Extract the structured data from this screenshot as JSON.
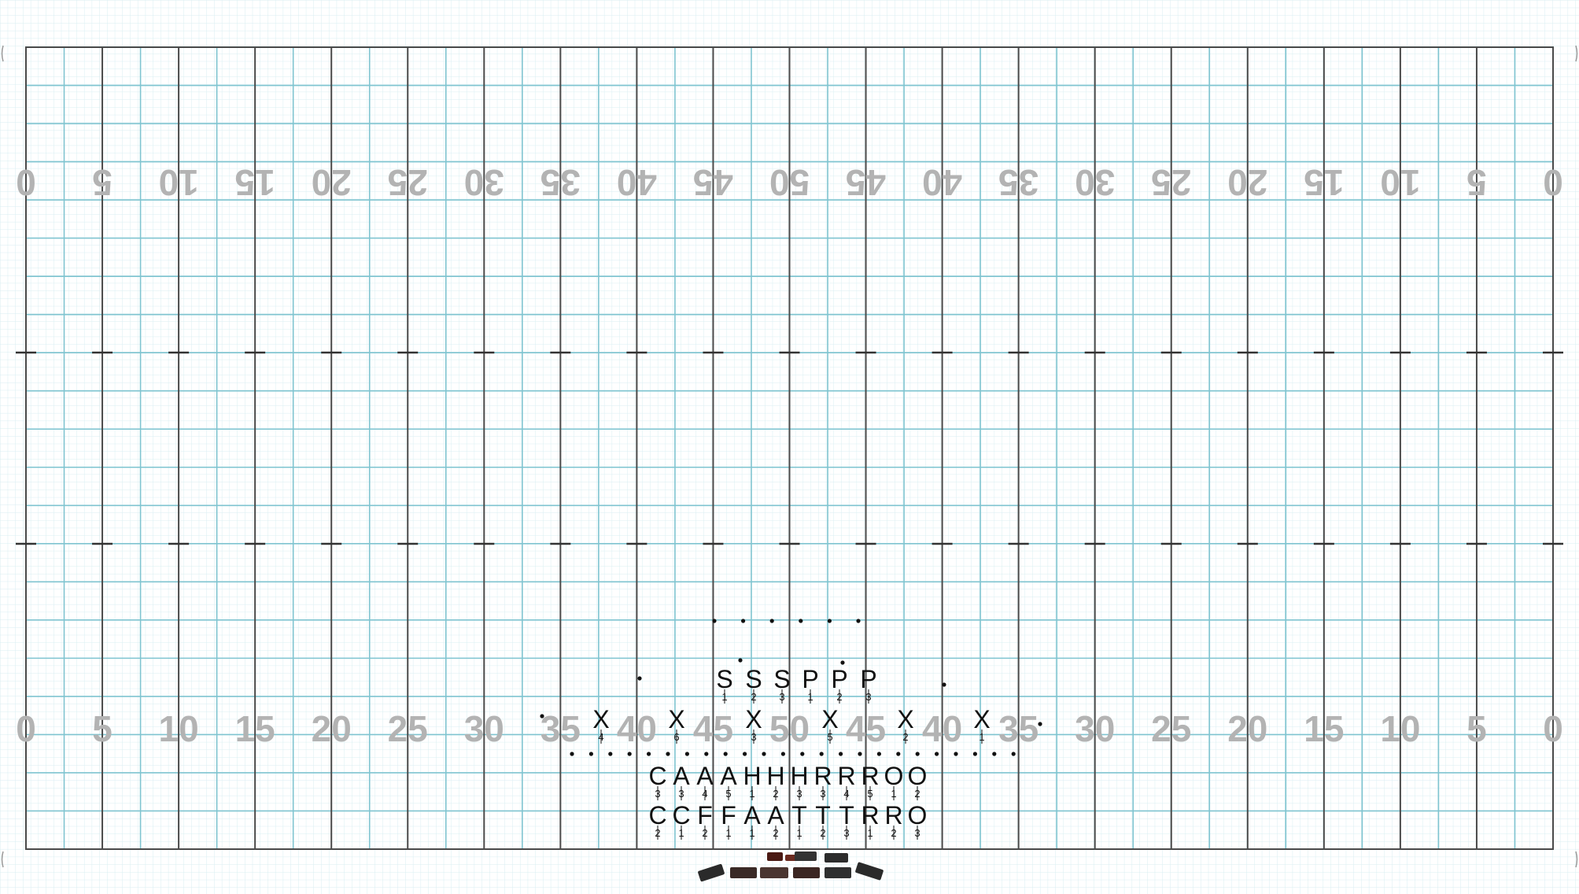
{
  "field": {
    "yard_labels": [
      "0",
      "5",
      "10",
      "15",
      "20",
      "25",
      "30",
      "35",
      "40",
      "45",
      "50",
      "45",
      "40",
      "35",
      "30",
      "25",
      "20",
      "15",
      "10",
      "5",
      "0"
    ],
    "colors": {
      "grid_fine": "#d8eef2",
      "grid_major": "#7fc4d0",
      "line_dark": "#4a4a4a",
      "yard_text": "#b3b3b3",
      "ink": "#111111"
    }
  },
  "players": [
    {
      "label": "S",
      "num": "1",
      "role": "safety"
    },
    {
      "label": "S",
      "num": "2",
      "role": "safety"
    },
    {
      "label": "S",
      "num": "3",
      "role": "safety"
    },
    {
      "label": "P",
      "num": "1",
      "role": "punter"
    },
    {
      "label": "P",
      "num": "2",
      "role": "punter"
    },
    {
      "label": "P",
      "num": "3",
      "role": "punter"
    },
    {
      "label": "X",
      "num": "4",
      "role": "receiver"
    },
    {
      "label": "X",
      "num": "6",
      "role": "receiver"
    },
    {
      "label": "X",
      "num": "3",
      "role": "receiver"
    },
    {
      "label": "X",
      "num": "5",
      "role": "receiver"
    },
    {
      "label": "X",
      "num": "2",
      "role": "receiver"
    },
    {
      "label": "X",
      "num": "1",
      "role": "receiver"
    },
    {
      "label": "C",
      "num": "3",
      "role": "line-top"
    },
    {
      "label": "A",
      "num": "3",
      "role": "line-top"
    },
    {
      "label": "A",
      "num": "4",
      "role": "line-top"
    },
    {
      "label": "A",
      "num": "5",
      "role": "line-top"
    },
    {
      "label": "H",
      "num": "1",
      "role": "line-top"
    },
    {
      "label": "H",
      "num": "2",
      "role": "line-top"
    },
    {
      "label": "H",
      "num": "3",
      "role": "line-top"
    },
    {
      "label": "R",
      "num": "3",
      "role": "line-top"
    },
    {
      "label": "R",
      "num": "4",
      "role": "line-top"
    },
    {
      "label": "R",
      "num": "5",
      "role": "line-top"
    },
    {
      "label": "O",
      "num": "1",
      "role": "line-top"
    },
    {
      "label": "O",
      "num": "2",
      "role": "line-top"
    },
    {
      "label": "C",
      "num": "2",
      "role": "line-bottom"
    },
    {
      "label": "C",
      "num": "1",
      "role": "line-bottom"
    },
    {
      "label": "F",
      "num": "2",
      "role": "line-bottom"
    },
    {
      "label": "F",
      "num": "1",
      "role": "line-bottom"
    },
    {
      "label": "A",
      "num": "1",
      "role": "line-bottom"
    },
    {
      "label": "A",
      "num": "2",
      "role": "line-bottom"
    },
    {
      "label": "T",
      "num": "1",
      "role": "line-bottom"
    },
    {
      "label": "T",
      "num": "2",
      "role": "line-bottom"
    },
    {
      "label": "T",
      "num": "3",
      "role": "line-bottom"
    },
    {
      "label": "R",
      "num": "1",
      "role": "line-bottom"
    },
    {
      "label": "R",
      "num": "2",
      "role": "line-bottom"
    },
    {
      "label": "O",
      "num": "3",
      "role": "line-bottom"
    }
  ],
  "props": [
    {
      "icon": "cannon-icon"
    },
    {
      "icon": "cannon-icon"
    },
    {
      "icon": "drum-icon"
    },
    {
      "icon": "drum-icon"
    },
    {
      "icon": "cart-icon"
    },
    {
      "icon": "cart-icon"
    },
    {
      "icon": "cart-icon"
    },
    {
      "icon": "cart-icon"
    },
    {
      "icon": "ramp-icon"
    },
    {
      "icon": "ramp-icon"
    }
  ]
}
